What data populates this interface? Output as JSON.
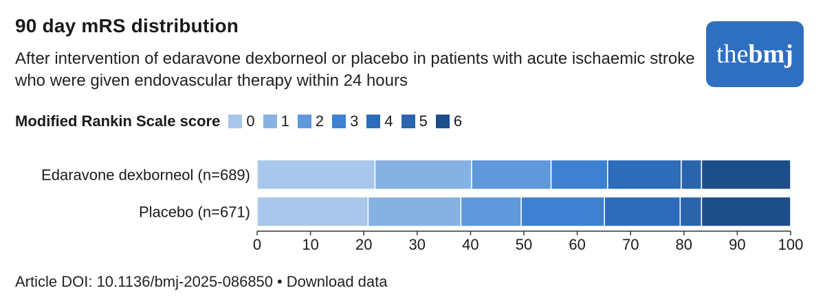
{
  "header": {
    "title": "90 day mRS distribution",
    "subtitle": "After intervention of edaravone dexborneol or placebo in patients with acute ischaemic stroke who were given endovascular therapy within 24 hours"
  },
  "logo": {
    "text_light": "the",
    "text_bold": "bmj",
    "color": "#2f6fc0"
  },
  "legend": {
    "title": "Modified Rankin Scale score",
    "items": [
      {
        "label": "0",
        "color": "#a8c7ea"
      },
      {
        "label": "1",
        "color": "#86b2e3"
      },
      {
        "label": "2",
        "color": "#5f98db"
      },
      {
        "label": "3",
        "color": "#3f81d0"
      },
      {
        "label": "4",
        "color": "#2c6cbb"
      },
      {
        "label": "5",
        "color": "#2a64ad"
      },
      {
        "label": "6",
        "color": "#1e4e89"
      }
    ]
  },
  "chart_data": {
    "type": "bar",
    "orientation": "horizontal",
    "stacked": true,
    "categories": [
      "Edaravone dexborneol (n=689)",
      "Placebo (n=671)"
    ],
    "series": [
      {
        "name": "0",
        "values": [
          22.1,
          20.8
        ]
      },
      {
        "name": "1",
        "values": [
          18.1,
          17.4
        ]
      },
      {
        "name": "2",
        "values": [
          14.9,
          11.3
        ]
      },
      {
        "name": "3",
        "values": [
          10.6,
          15.6
        ]
      },
      {
        "name": "4",
        "values": [
          13.8,
          14.2
        ]
      },
      {
        "name": "5",
        "values": [
          3.8,
          4.0
        ]
      },
      {
        "name": "6",
        "values": [
          16.7,
          16.7
        ]
      }
    ],
    "xlim": [
      0,
      100
    ],
    "xticks": [
      "0",
      "10",
      "20",
      "30",
      "40",
      "50",
      "60",
      "70",
      "80",
      "90",
      "100"
    ],
    "grid": false,
    "legend_position": "top"
  },
  "footer": {
    "doi": "Article DOI: 10.1136/bmj-2025-086850",
    "separator": "•",
    "download": "Download data"
  }
}
